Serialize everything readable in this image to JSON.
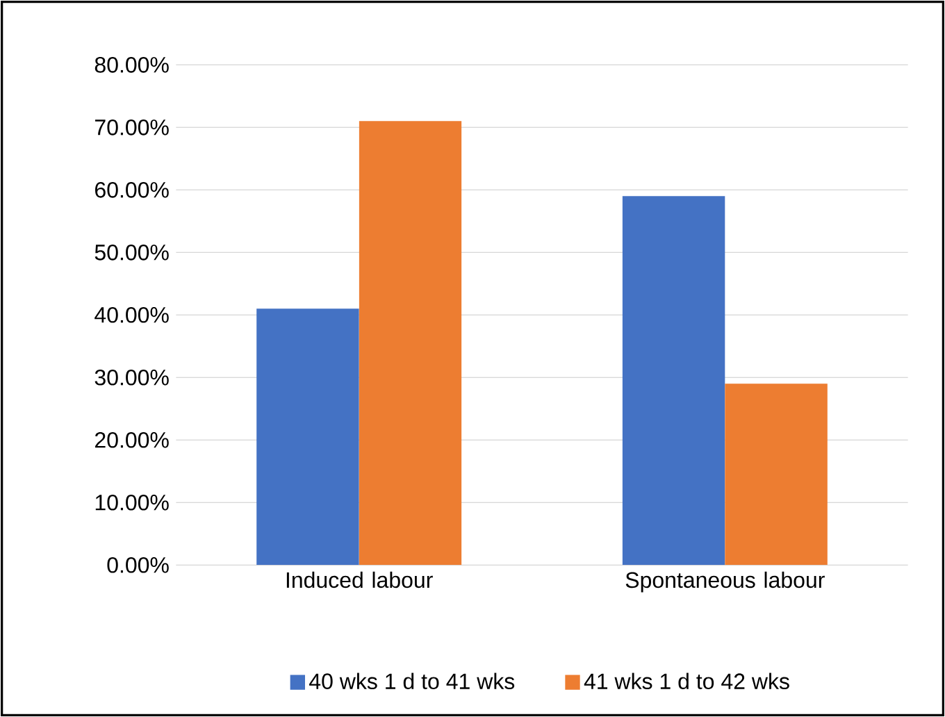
{
  "chart_data": {
    "type": "bar",
    "categories": [
      "Induced labour",
      "Spontaneous labour"
    ],
    "series": [
      {
        "name": "40 wks 1 d to 41 wks",
        "color": "#4472c4",
        "values": [
          41,
          59
        ]
      },
      {
        "name": "41 wks 1 d to 42 wks",
        "color": "#ed7d31",
        "values": [
          71,
          29
        ]
      }
    ],
    "ylim": [
      0,
      80
    ],
    "yticks": [
      {
        "value": 0,
        "label": "0.00%"
      },
      {
        "value": 10,
        "label": "10.00%"
      },
      {
        "value": 20,
        "label": "20.00%"
      },
      {
        "value": 30,
        "label": "30.00%"
      },
      {
        "value": 40,
        "label": "40.00%"
      },
      {
        "value": 50,
        "label": "50.00%"
      },
      {
        "value": 60,
        "label": "60.00%"
      },
      {
        "value": 70,
        "label": "70.00%"
      },
      {
        "value": 80,
        "label": "80.00%"
      }
    ],
    "grid": "y",
    "legend": "bottom"
  }
}
